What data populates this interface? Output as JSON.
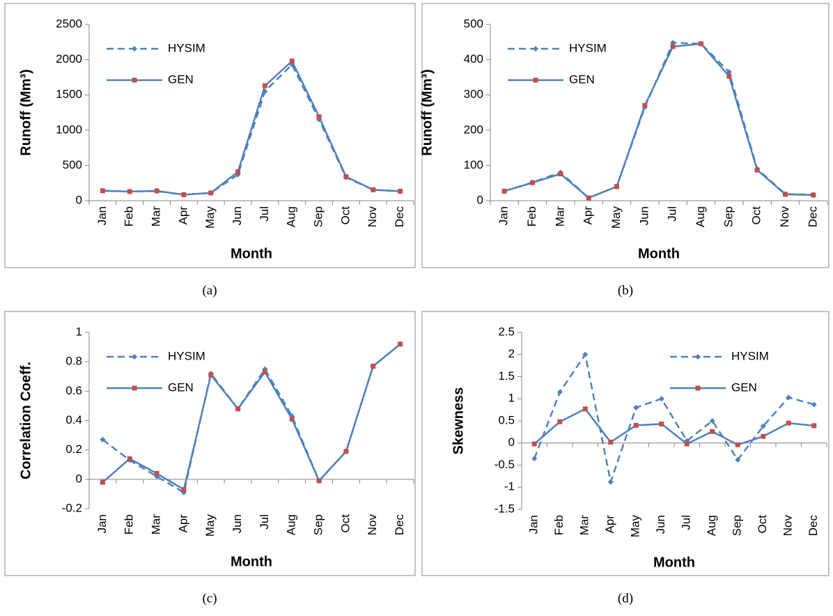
{
  "chart_data": [
    {
      "type": "line",
      "caption": "(a)",
      "y_label": "Runoff (Mm³)",
      "x_label": "Month",
      "categories": [
        "Jan",
        "Feb",
        "Mar",
        "Apr",
        "May",
        "Jun",
        "Jul",
        "Aug",
        "Sep",
        "Oct",
        "Nov",
        "Dec"
      ],
      "ylim": [
        0,
        2500
      ],
      "yticks": [
        0,
        500,
        1000,
        1500,
        2000,
        2500
      ],
      "grid": false,
      "legend_position": "upper left",
      "series": [
        {
          "name": "HYSIM",
          "color": "#4f81bd",
          "marker_color": "#4f81bd",
          "line_style": "dashed",
          "marker": "diamond",
          "values": [
            145,
            130,
            135,
            85,
            110,
            370,
            1550,
            1930,
            1150,
            330,
            155,
            130
          ]
        },
        {
          "name": "GEN",
          "color": "#4f81bd",
          "marker_color": "#c0504d",
          "line_style": "solid",
          "marker": "square",
          "values": [
            140,
            130,
            140,
            85,
            110,
            410,
            1630,
            1980,
            1190,
            340,
            155,
            135
          ]
        }
      ]
    },
    {
      "type": "line",
      "caption": "(b)",
      "y_label": "Runoff (Mm³)",
      "x_label": "Month",
      "categories": [
        "Jan",
        "Feb",
        "Mar",
        "Apr",
        "May",
        "Jun",
        "Jul",
        "Aug",
        "Sep",
        "Oct",
        "Nov",
        "Dec"
      ],
      "ylim": [
        0,
        500
      ],
      "yticks": [
        0,
        100,
        200,
        300,
        400,
        500
      ],
      "grid": false,
      "legend_position": "upper left",
      "series": [
        {
          "name": "HYSIM",
          "color": "#4f81bd",
          "marker_color": "#4f81bd",
          "line_style": "dashed",
          "marker": "diamond",
          "values": [
            27,
            52,
            80,
            8,
            40,
            265,
            448,
            445,
            365,
            90,
            19,
            17
          ]
        },
        {
          "name": "GEN",
          "color": "#4f81bd",
          "marker_color": "#c0504d",
          "line_style": "solid",
          "marker": "square",
          "values": [
            27,
            51,
            76,
            8,
            40,
            270,
            437,
            445,
            353,
            87,
            18,
            16
          ]
        }
      ]
    },
    {
      "type": "line",
      "caption": "(c)",
      "y_label": "Correlation Coeff.",
      "x_label": "Month",
      "categories": [
        "Jan",
        "Feb",
        "Mar",
        "Apr",
        "May",
        "Jun",
        "Jul",
        "Aug",
        "Sep",
        "Oct",
        "Nov",
        "Dec"
      ],
      "ylim": [
        -0.2,
        1
      ],
      "yticks": [
        -0.2,
        0,
        0.2,
        0.4,
        0.6,
        0.8,
        1
      ],
      "grid": false,
      "legend_position": "upper left",
      "series": [
        {
          "name": "HYSIM",
          "color": "#4f81bd",
          "marker_color": "#4f81bd",
          "line_style": "dashed",
          "marker": "diamond",
          "values": [
            0.27,
            0.13,
            0.02,
            -0.09,
            0.72,
            0.48,
            0.75,
            0.43,
            -0.01,
            0.19,
            0.77,
            0.92
          ]
        },
        {
          "name": "GEN",
          "color": "#4f81bd",
          "marker_color": "#c0504d",
          "line_style": "solid",
          "marker": "square",
          "values": [
            -0.02,
            0.14,
            0.04,
            -0.07,
            0.71,
            0.48,
            0.73,
            0.41,
            -0.01,
            0.19,
            0.77,
            0.92
          ]
        }
      ]
    },
    {
      "type": "line",
      "caption": "(d)",
      "y_label": "Skewness",
      "x_label": "Month",
      "categories": [
        "Jan",
        "Feb",
        "Mar",
        "Apr",
        "May",
        "Jun",
        "Jul",
        "Aug",
        "Sep",
        "Oct",
        "Nov",
        "Dec"
      ],
      "ylim": [
        -1.5,
        2.5
      ],
      "yticks": [
        -1.5,
        -1,
        -0.5,
        0,
        0.5,
        1,
        1.5,
        2,
        2.5
      ],
      "grid": false,
      "legend_position": "upper right",
      "series": [
        {
          "name": "HYSIM",
          "color": "#4f81bd",
          "marker_color": "#4f81bd",
          "line_style": "dashed",
          "marker": "diamond",
          "values": [
            -0.35,
            1.15,
            2.0,
            -0.88,
            0.8,
            1.0,
            0.05,
            0.5,
            -0.38,
            0.38,
            1.03,
            0.87
          ]
        },
        {
          "name": "GEN",
          "color": "#4f81bd",
          "marker_color": "#c0504d",
          "line_style": "solid",
          "marker": "square",
          "values": [
            -0.02,
            0.48,
            0.77,
            0.02,
            0.4,
            0.43,
            -0.02,
            0.26,
            -0.04,
            0.15,
            0.45,
            0.39
          ]
        }
      ]
    }
  ]
}
